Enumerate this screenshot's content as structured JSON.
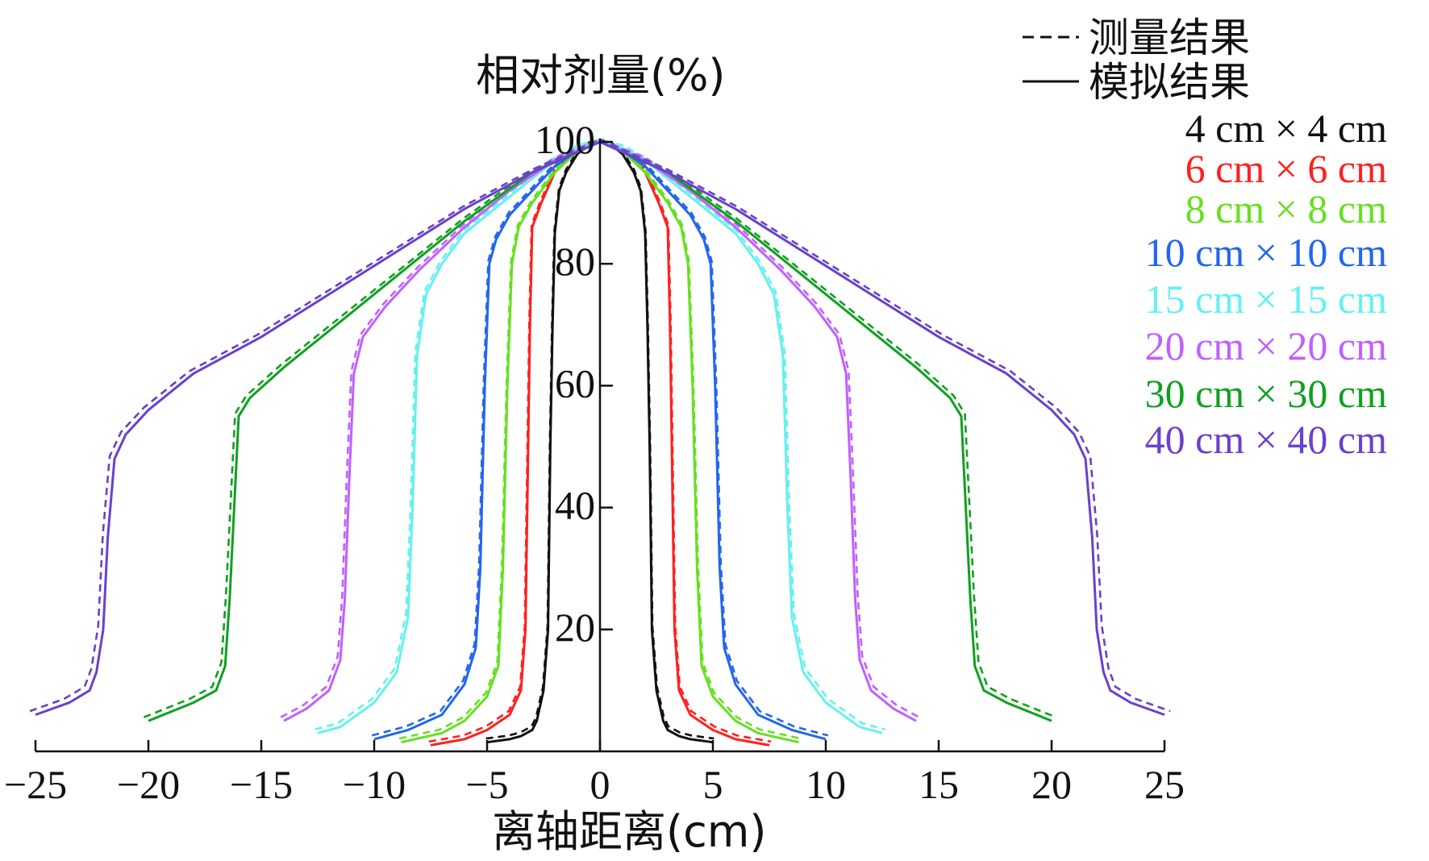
{
  "chart_data": {
    "type": "line",
    "xlabel": "离轴距离(cm)",
    "ylabel": "相对剂量(%)",
    "xlim": [
      -25,
      25
    ],
    "ylim": [
      0,
      100
    ],
    "xticks": [
      -25,
      -20,
      -15,
      -10,
      -5,
      0,
      5,
      10,
      15,
      20,
      25
    ],
    "yticks": [
      20,
      40,
      60,
      80,
      100
    ],
    "xtick_labels": [
      "−25",
      "−20",
      "−15",
      "−10",
      "−5",
      "0",
      "5",
      "10",
      "15",
      "20",
      "25"
    ],
    "ytick_labels": [
      "20",
      "40",
      "60",
      "80",
      "100"
    ],
    "line_styles": [
      {
        "label": "测量结果",
        "dash": true
      },
      {
        "label": "模拟结果",
        "dash": false
      }
    ],
    "series": [
      {
        "name": "4 cm × 4 cm",
        "color": "#111111",
        "x": [
          0,
          0.5,
          1,
          1.5,
          1.8,
          2,
          2.1,
          2.2,
          2.3,
          2.5,
          2.8,
          3,
          3.5,
          4,
          5
        ],
        "y": [
          100,
          99.5,
          98,
          95,
          92,
          85,
          70,
          50,
          20,
          10,
          5,
          3.5,
          2.5,
          2,
          1.5
        ]
      },
      {
        "name": "6 cm × 6 cm",
        "color": "#ff2020",
        "x": [
          0,
          1,
          2,
          2.6,
          3,
          3.1,
          3.2,
          3.3,
          3.5,
          4,
          5,
          6,
          7.5
        ],
        "y": [
          100,
          98.5,
          95,
          90,
          86,
          70,
          45,
          20,
          10,
          6,
          3.5,
          2,
          1
        ]
      },
      {
        "name": "8 cm × 8 cm",
        "color": "#66e020",
        "x": [
          0,
          1,
          2,
          3,
          3.6,
          3.9,
          4.1,
          4.3,
          4.5,
          5,
          6,
          7,
          8.8
        ],
        "y": [
          100,
          98.5,
          95,
          90,
          86,
          80,
          60,
          30,
          14,
          9,
          5,
          3,
          1.5
        ]
      },
      {
        "name": "10 cm × 10 cm",
        "color": "#2266ee",
        "x": [
          0,
          1,
          2,
          3,
          4,
          4.6,
          4.9,
          5.1,
          5.3,
          5.5,
          6,
          7,
          8.5,
          10
        ],
        "y": [
          100,
          98.5,
          96,
          92,
          88,
          84,
          80,
          60,
          30,
          17,
          11,
          6,
          3.5,
          2
        ]
      },
      {
        "name": "15 cm × 15 cm",
        "color": "#66f0f0",
        "x": [
          0,
          1,
          2,
          3,
          4,
          5,
          6,
          7,
          7.7,
          8.1,
          8.3,
          8.5,
          9,
          10,
          11.5,
          12.5
        ],
        "y": [
          100,
          99,
          97,
          94,
          91,
          88,
          85,
          80,
          75,
          65,
          40,
          22,
          13,
          8,
          4,
          3
        ]
      },
      {
        "name": "20 cm × 20 cm",
        "color": "#c060ff",
        "x": [
          0,
          2,
          4,
          6,
          8,
          9.5,
          10.5,
          10.9,
          11.1,
          11.3,
          11.5,
          12,
          13,
          14
        ],
        "y": [
          100,
          97,
          92,
          86,
          79,
          73,
          68,
          62,
          45,
          25,
          15,
          10,
          7,
          5
        ]
      },
      {
        "name": "30 cm × 30 cm",
        "color": "#10a020",
        "x": [
          0,
          3,
          6,
          9,
          12,
          14,
          15.5,
          16,
          16.2,
          16.4,
          16.6,
          17,
          18,
          20
        ],
        "y": [
          100,
          95,
          87,
          78,
          69,
          63,
          58,
          55,
          40,
          25,
          14,
          10,
          8,
          5
        ]
      },
      {
        "name": "40 cm × 40 cm",
        "color": "#6a40cc",
        "x": [
          0,
          3,
          6,
          9,
          12,
          15,
          18,
          20,
          21,
          21.5,
          21.8,
          22,
          22.3,
          22.6,
          23.5,
          25
        ],
        "y": [
          100,
          95,
          89,
          82,
          75,
          68,
          62,
          56,
          52,
          48,
          35,
          20,
          13,
          10,
          8,
          6
        ]
      }
    ]
  }
}
